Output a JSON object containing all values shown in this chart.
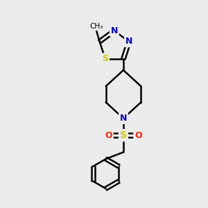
{
  "background_color": "#ebebeb",
  "atom_colors": {
    "C": "#000000",
    "N": "#0000cc",
    "S_thia": "#cccc00",
    "S_sulf": "#cccc00",
    "O": "#ff2200"
  },
  "figsize": [
    3.0,
    3.0
  ],
  "dpi": 100,
  "xlim": [
    0,
    10
  ],
  "ylim": [
    0,
    10
  ]
}
